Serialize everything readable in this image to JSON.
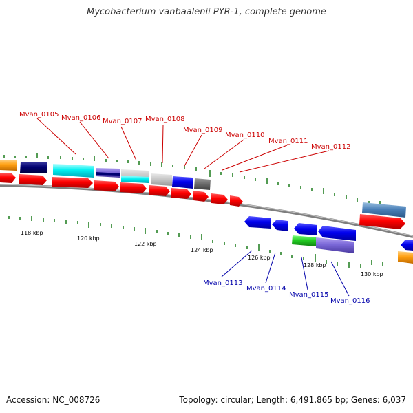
{
  "title": "Mycobacterium vanbaalenii PYR-1, complete genome",
  "accession": "Accession: NC_008726",
  "topology": "Topology: circular; Length: 6,491,865 bp; Genes: 6,037",
  "colors": {
    "backbone": "#8a8a8a",
    "tick": "#1a7a1a",
    "cds": "#ff0000",
    "forward_label": "#cc0000",
    "reverse_label": "#0000aa"
  },
  "tick_labels": [
    "118 kbp",
    "120 kbp",
    "122 kbp",
    "124 kbp",
    "126 kbp",
    "128 kbp",
    "130 kbp"
  ],
  "forward_labels": [
    "Mvan_0105",
    "Mvan_0106",
    "Mvan_0107",
    "Mvan_0108",
    "Mvan_0109",
    "Mvan_0110",
    "Mvan_0111",
    "Mvan_0112"
  ],
  "reverse_labels": [
    "Mvan_0113",
    "Mvan_0114",
    "Mvan_0115",
    "Mvan_0116"
  ]
}
